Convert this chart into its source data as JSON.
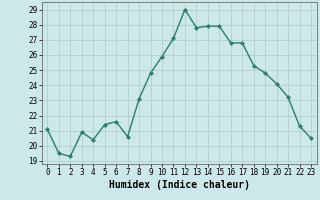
{
  "x": [
    0,
    1,
    2,
    3,
    4,
    5,
    6,
    7,
    8,
    9,
    10,
    11,
    12,
    13,
    14,
    15,
    16,
    17,
    18,
    19,
    20,
    21,
    22,
    23
  ],
  "y": [
    21.1,
    19.5,
    19.3,
    20.9,
    20.4,
    21.4,
    21.6,
    20.6,
    23.1,
    24.8,
    25.9,
    27.1,
    29.0,
    27.8,
    27.9,
    27.9,
    26.8,
    26.8,
    25.3,
    24.8,
    24.1,
    23.2,
    21.3,
    20.5
  ],
  "line_color": "#2e7d6e",
  "marker": "D",
  "markersize": 2.0,
  "linewidth": 1.0,
  "xlabel": "Humidex (Indice chaleur)",
  "ylabel": "",
  "xlim": [
    -0.5,
    23.5
  ],
  "ylim": [
    18.8,
    29.5
  ],
  "yticks": [
    19,
    20,
    21,
    22,
    23,
    24,
    25,
    26,
    27,
    28,
    29
  ],
  "xticks": [
    0,
    1,
    2,
    3,
    4,
    5,
    6,
    7,
    8,
    9,
    10,
    11,
    12,
    13,
    14,
    15,
    16,
    17,
    18,
    19,
    20,
    21,
    22,
    23
  ],
  "bg_color": "#cce8e8",
  "grid_color": "#b0c8c8",
  "axis_fontsize": 7,
  "tick_fontsize": 5.5
}
